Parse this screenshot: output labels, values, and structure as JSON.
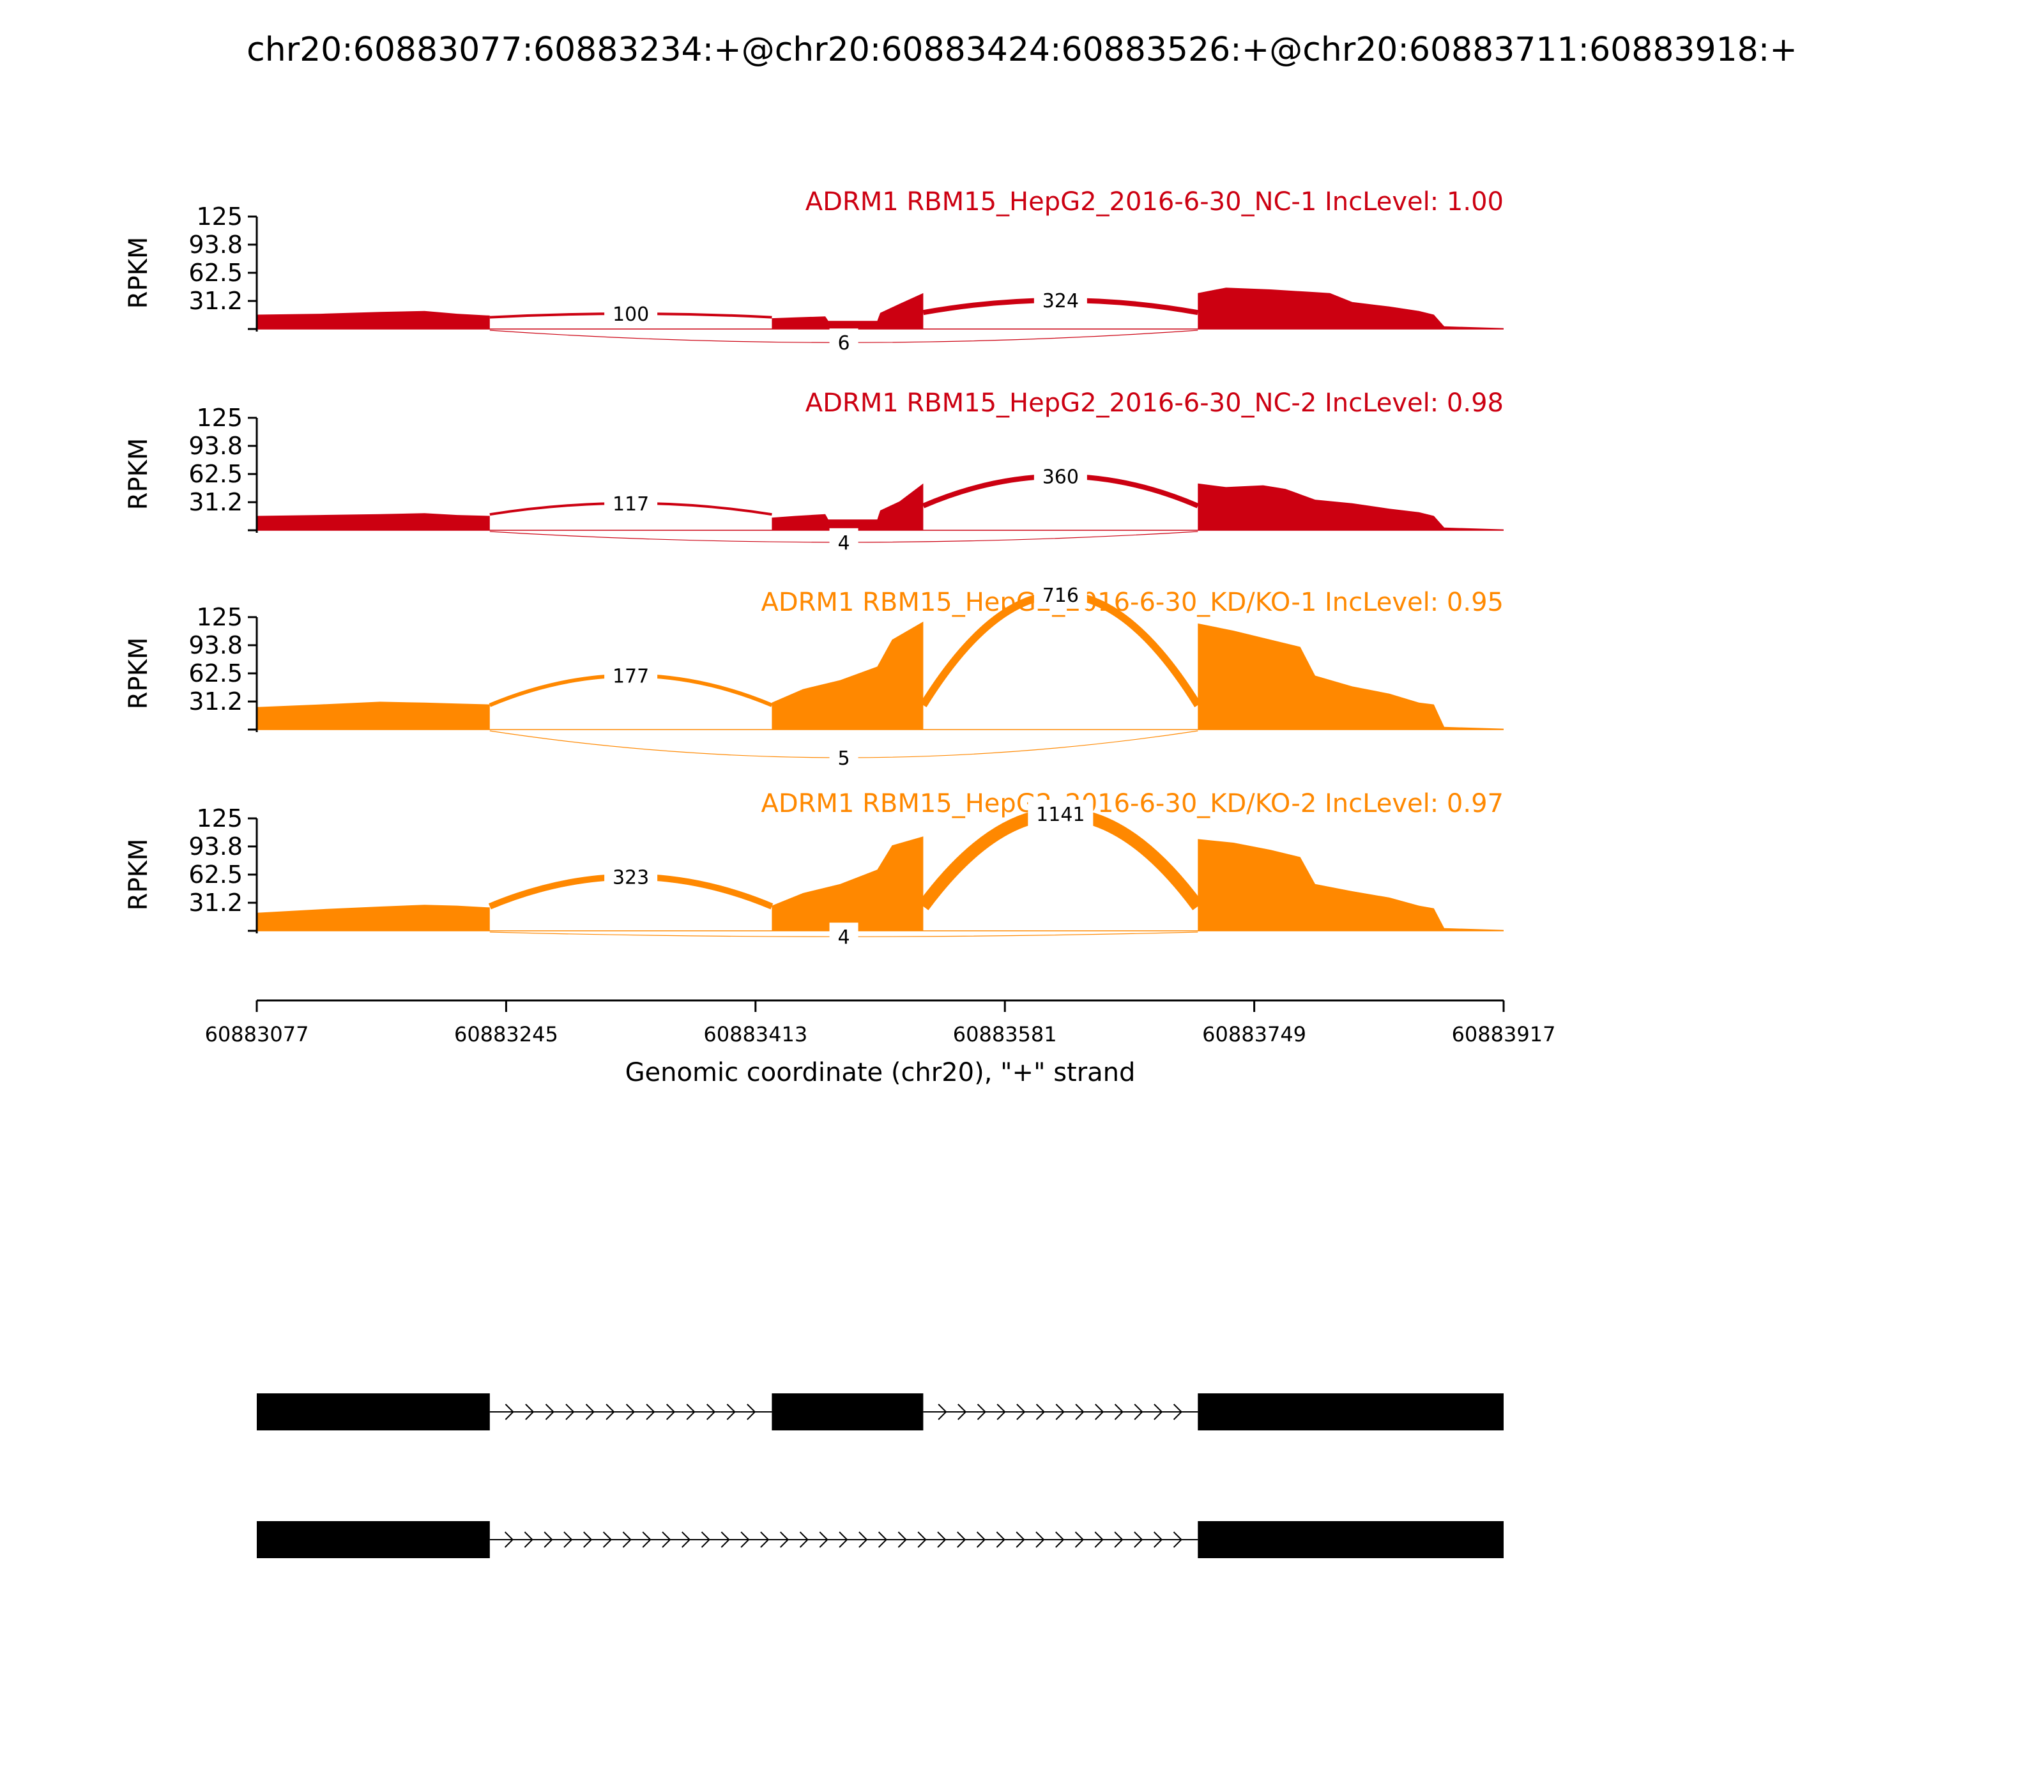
{
  "title": "chr20:60883077:60883234:+@chr20:60883424:60883526:+@chr20:60883711:60883918:+",
  "colors": {
    "nc": "#cc0011",
    "kd": "#ff8800",
    "axis": "#000000",
    "exon": "#000000"
  },
  "chart_data": {
    "type": "area",
    "xlabel": "Genomic coordinate (chr20), \"+\" strand",
    "ylabel": "RPKM",
    "xlim": [
      60883077,
      60883917
    ],
    "x_ticks": [
      "60883077",
      "60883245",
      "60883413",
      "60883581",
      "60883749",
      "60883917"
    ],
    "ylim": [
      0,
      125
    ],
    "y_ticks": [
      "125",
      "93.8",
      "62.5",
      "31.2"
    ],
    "exons": [
      [
        60883077,
        60883234
      ],
      [
        60883424,
        60883526
      ],
      [
        60883711,
        60883918
      ]
    ],
    "panels": [
      {
        "label": "ADRM1 RBM15_HepG2_2016-6-30_NC-1 IncLevel: 1.00",
        "color_key": "nc",
        "coverage": [
          [
            60883077,
            16
          ],
          [
            60883120,
            17
          ],
          [
            60883160,
            19
          ],
          [
            60883190,
            20
          ],
          [
            60883212,
            17
          ],
          [
            60883234,
            15
          ],
          [
            60883424,
            12
          ],
          [
            60883440,
            13
          ],
          [
            60883460,
            14
          ],
          [
            60883462,
            9
          ],
          [
            60883495,
            9
          ],
          [
            60883497,
            18
          ],
          [
            60883510,
            28
          ],
          [
            60883526,
            40
          ],
          [
            60883711,
            40
          ],
          [
            60883730,
            46
          ],
          [
            60883760,
            44
          ],
          [
            60883790,
            41
          ],
          [
            60883800,
            40
          ],
          [
            60883815,
            30
          ],
          [
            60883840,
            25
          ],
          [
            60883860,
            20
          ],
          [
            60883870,
            16
          ],
          [
            60883877,
            3
          ],
          [
            60883917,
            1
          ]
        ],
        "junctions": [
          {
            "from": 60883234,
            "to": 60883424,
            "count": "100",
            "side": "above",
            "height": 17,
            "width": 4
          },
          {
            "from": 60883526,
            "to": 60883711,
            "count": "324",
            "side": "above",
            "height": 32,
            "width": 8
          },
          {
            "from": 60883234,
            "to": 60883711,
            "count": "6",
            "side": "below",
            "height": 16,
            "width": 1.2
          }
        ]
      },
      {
        "label": "ADRM1 RBM15_HepG2_2016-6-30_NC-2 IncLevel: 0.98",
        "color_key": "nc",
        "coverage": [
          [
            60883077,
            16
          ],
          [
            60883120,
            17
          ],
          [
            60883160,
            18
          ],
          [
            60883190,
            19
          ],
          [
            60883212,
            17
          ],
          [
            60883234,
            16
          ],
          [
            60883424,
            14
          ],
          [
            60883440,
            16
          ],
          [
            60883460,
            18
          ],
          [
            60883462,
            12
          ],
          [
            60883495,
            12
          ],
          [
            60883497,
            22
          ],
          [
            60883510,
            32
          ],
          [
            60883526,
            52
          ],
          [
            60883711,
            52
          ],
          [
            60883730,
            48
          ],
          [
            60883755,
            50
          ],
          [
            60883770,
            46
          ],
          [
            60883790,
            34
          ],
          [
            60883815,
            30
          ],
          [
            60883840,
            24
          ],
          [
            60883860,
            20
          ],
          [
            60883870,
            16
          ],
          [
            60883877,
            3
          ],
          [
            60883917,
            1
          ]
        ],
        "junctions": [
          {
            "from": 60883234,
            "to": 60883424,
            "count": "117",
            "side": "above",
            "height": 30,
            "width": 4
          },
          {
            "from": 60883526,
            "to": 60883711,
            "count": "360",
            "side": "above",
            "height": 60,
            "width": 8
          },
          {
            "from": 60883234,
            "to": 60883711,
            "count": "4",
            "side": "below",
            "height": 14,
            "width": 1.2
          }
        ]
      },
      {
        "label": "ADRM1 RBM15_HepG2_2016-6-30_KD/KO-1 IncLevel: 0.95",
        "color_key": "kd",
        "coverage": [
          [
            60883077,
            25
          ],
          [
            60883120,
            28
          ],
          [
            60883160,
            31
          ],
          [
            60883190,
            30
          ],
          [
            60883212,
            29
          ],
          [
            60883234,
            28
          ],
          [
            60883424,
            30
          ],
          [
            60883445,
            45
          ],
          [
            60883470,
            55
          ],
          [
            60883495,
            70
          ],
          [
            60883505,
            100
          ],
          [
            60883526,
            120
          ],
          [
            60883711,
            118
          ],
          [
            60883735,
            110
          ],
          [
            60883760,
            100
          ],
          [
            60883780,
            92
          ],
          [
            60883790,
            60
          ],
          [
            60883815,
            48
          ],
          [
            60883840,
            40
          ],
          [
            60883860,
            30
          ],
          [
            60883870,
            28
          ],
          [
            60883877,
            3
          ],
          [
            60883917,
            1
          ]
        ],
        "junctions": [
          {
            "from": 60883234,
            "to": 60883424,
            "count": "177",
            "side": "above",
            "height": 60,
            "width": 6
          },
          {
            "from": 60883526,
            "to": 60883711,
            "count": "716",
            "side": "above",
            "height": 150,
            "width": 12
          },
          {
            "from": 60883234,
            "to": 60883711,
            "count": "5",
            "side": "below",
            "height": 35,
            "width": 1.2
          }
        ]
      },
      {
        "label": "ADRM1 RBM15_HepG2_2016-6-30_KD/KO-2 IncLevel: 0.97",
        "color_key": "kd",
        "coverage": [
          [
            60883077,
            20
          ],
          [
            60883120,
            24
          ],
          [
            60883160,
            27
          ],
          [
            60883190,
            29
          ],
          [
            60883212,
            28
          ],
          [
            60883234,
            26
          ],
          [
            60883424,
            28
          ],
          [
            60883445,
            42
          ],
          [
            60883470,
            52
          ],
          [
            60883495,
            68
          ],
          [
            60883505,
            95
          ],
          [
            60883526,
            105
          ],
          [
            60883711,
            102
          ],
          [
            60883735,
            98
          ],
          [
            60883760,
            90
          ],
          [
            60883780,
            82
          ],
          [
            60883790,
            52
          ],
          [
            60883815,
            44
          ],
          [
            60883840,
            37
          ],
          [
            60883860,
            28
          ],
          [
            60883870,
            25
          ],
          [
            60883877,
            3
          ],
          [
            60883917,
            1
          ]
        ],
        "junctions": [
          {
            "from": 60883234,
            "to": 60883424,
            "count": "323",
            "side": "above",
            "height": 60,
            "width": 10
          },
          {
            "from": 60883526,
            "to": 60883711,
            "count": "1141",
            "side": "above",
            "height": 130,
            "width": 20
          },
          {
            "from": 60883234,
            "to": 60883711,
            "count": "4",
            "side": "below",
            "height": 6,
            "width": 1.2
          }
        ]
      }
    ],
    "isoforms": [
      [
        [
          60883077,
          60883234
        ],
        [
          60883424,
          60883526
        ],
        [
          60883711,
          60883918
        ]
      ],
      [
        [
          60883077,
          60883234
        ],
        [
          60883711,
          60883918
        ]
      ]
    ]
  }
}
